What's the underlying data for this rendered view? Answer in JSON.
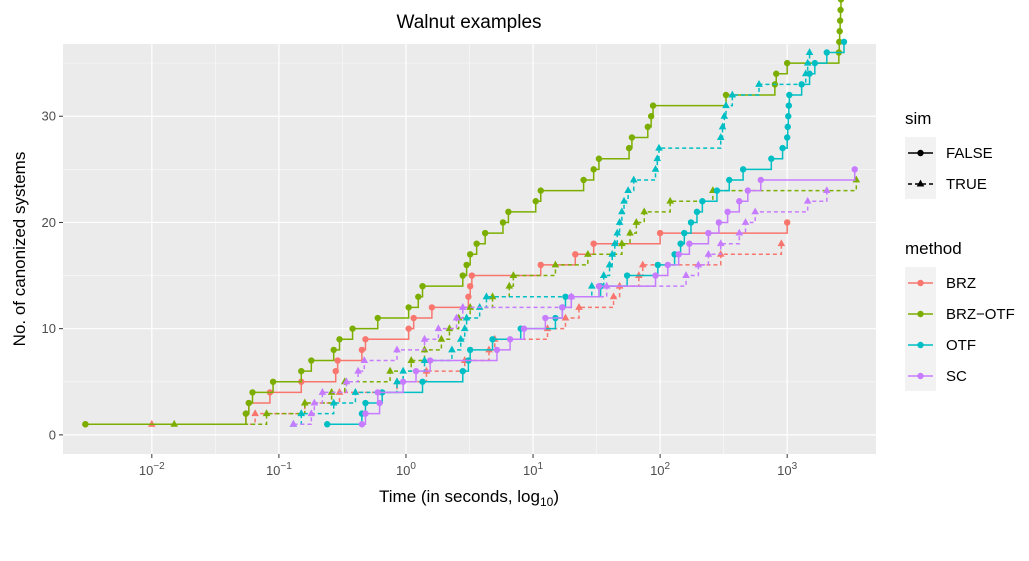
{
  "chart_data": {
    "type": "step",
    "title": "Walnut examples",
    "xlabel": "Time (in seconds, log",
    "xlabel_subscript": "10",
    "xlabel_suffix": ")",
    "ylabel": "No. of canonized systems",
    "x_scale": "log10",
    "xlim": [
      0.002,
      5000
    ],
    "ylim": [
      -1.8,
      36.8
    ],
    "x_ticks": [
      {
        "value": 0.01,
        "base": "10",
        "exp": "−2"
      },
      {
        "value": 0.1,
        "base": "10",
        "exp": "−1"
      },
      {
        "value": 1,
        "base": "10",
        "exp": "0"
      },
      {
        "value": 10,
        "base": "10",
        "exp": "1"
      },
      {
        "value": 100,
        "base": "10",
        "exp": "2"
      },
      {
        "value": 1000,
        "base": "10",
        "exp": "3"
      }
    ],
    "y_ticks": [
      {
        "value": 0,
        "label": "0"
      },
      {
        "value": 10,
        "label": "10"
      },
      {
        "value": 20,
        "label": "20"
      },
      {
        "value": 30,
        "label": "30"
      }
    ],
    "legend_sim": {
      "title": "sim",
      "entries": [
        {
          "label": "FALSE",
          "shape": "circle",
          "dash": "solid"
        },
        {
          "label": "TRUE",
          "shape": "triangle",
          "dash": "dashed"
        }
      ]
    },
    "legend_method": {
      "title": "method",
      "entries": [
        {
          "label": "BRZ",
          "color": "#F8766D"
        },
        {
          "label": "BRZ−OTF",
          "color": "#7CAE00"
        },
        {
          "label": "OTF",
          "color": "#00BFC4"
        },
        {
          "label": "SC",
          "color": "#C77CFF"
        }
      ]
    },
    "series": [
      {
        "method": "BRZ",
        "sim": "FALSE",
        "color": "#F8766D",
        "x": [
          0.003,
          0.055,
          0.058,
          0.085,
          0.15,
          0.28,
          0.29,
          0.45,
          0.48,
          1.05,
          1.15,
          1.6,
          3.1,
          3.2,
          3.3,
          11.5,
          21.5,
          30,
          100,
          1000
        ]
      },
      {
        "method": "BRZ",
        "sim": "TRUE",
        "color": "#F8766D",
        "x": [
          0.01,
          0.065,
          0.16,
          0.3,
          0.85,
          1.45,
          2.9,
          4.5,
          5.0,
          13,
          18,
          23,
          43,
          48,
          68,
          73,
          300,
          900
        ]
      },
      {
        "method": "BRZ-OTF",
        "sim": "FALSE",
        "color": "#7CAE00",
        "x": [
          0.003,
          0.055,
          0.058,
          0.062,
          0.09,
          0.15,
          0.18,
          0.27,
          0.3,
          0.38,
          0.6,
          1.05,
          1.25,
          1.35,
          2.8,
          3.0,
          3.2,
          3.6,
          4.2,
          5.8,
          6.4,
          10.5,
          11.5,
          25,
          30,
          33,
          57,
          60,
          80,
          85,
          88,
          330,
          800,
          820,
          1000,
          2550,
          2570,
          2590,
          2610,
          2630,
          2650,
          2670,
          2700,
          2750,
          2850,
          3000
        ]
      },
      {
        "method": "BRZ-OTF",
        "sim": "TRUE",
        "color": "#7CAE00",
        "x": [
          0.015,
          0.08,
          0.16,
          0.26,
          0.33,
          0.75,
          1.1,
          1.4,
          1.9,
          2.2,
          2.6,
          3.2,
          4.8,
          6.5,
          7.0,
          15,
          27,
          50,
          58,
          65,
          75,
          120,
          260,
          3500
        ]
      },
      {
        "method": "OTF",
        "sim": "FALSE",
        "color": "#00BFC4",
        "x": [
          0.24,
          0.45,
          0.48,
          0.65,
          1.35,
          2.8,
          3.1,
          3.2,
          4.8,
          8.0,
          15,
          17,
          18,
          34,
          55,
          96,
          130,
          145,
          155,
          175,
          195,
          215,
          280,
          350,
          450,
          750,
          920,
          1000,
          1010,
          1020,
          1030,
          1040,
          1300,
          1500,
          1650,
          2050,
          2800
        ]
      },
      {
        "method": "OTF",
        "sim": "TRUE",
        "color": "#00BFC4",
        "x": [
          0.13,
          0.15,
          0.27,
          0.4,
          0.85,
          0.95,
          1.4,
          2.3,
          2.7,
          2.9,
          3.0,
          3.8,
          4.3,
          29,
          36,
          40,
          42,
          44,
          46,
          48,
          50,
          52,
          56,
          62,
          92,
          95,
          98,
          300,
          310,
          320,
          330,
          370,
          600,
          1400,
          1450,
          1500
        ]
      },
      {
        "method": "SC",
        "sim": "FALSE",
        "color": "#C77CFF",
        "x": [
          0.45,
          0.48,
          0.62,
          0.6,
          0.95,
          1.2,
          1.55,
          5.2,
          6.6,
          8.5,
          12.5,
          17,
          20,
          33,
          92,
          115,
          140,
          170,
          240,
          290,
          340,
          420,
          490,
          620,
          3400
        ]
      },
      {
        "method": "SC",
        "sim": "TRUE",
        "color": "#C77CFF",
        "x": [
          0.13,
          0.18,
          0.19,
          0.22,
          0.34,
          0.42,
          0.47,
          0.85,
          1.4,
          1.8,
          2.5,
          2.8,
          20,
          38,
          160,
          200,
          240,
          300,
          420,
          470,
          560,
          1450,
          2050
        ]
      }
    ]
  }
}
